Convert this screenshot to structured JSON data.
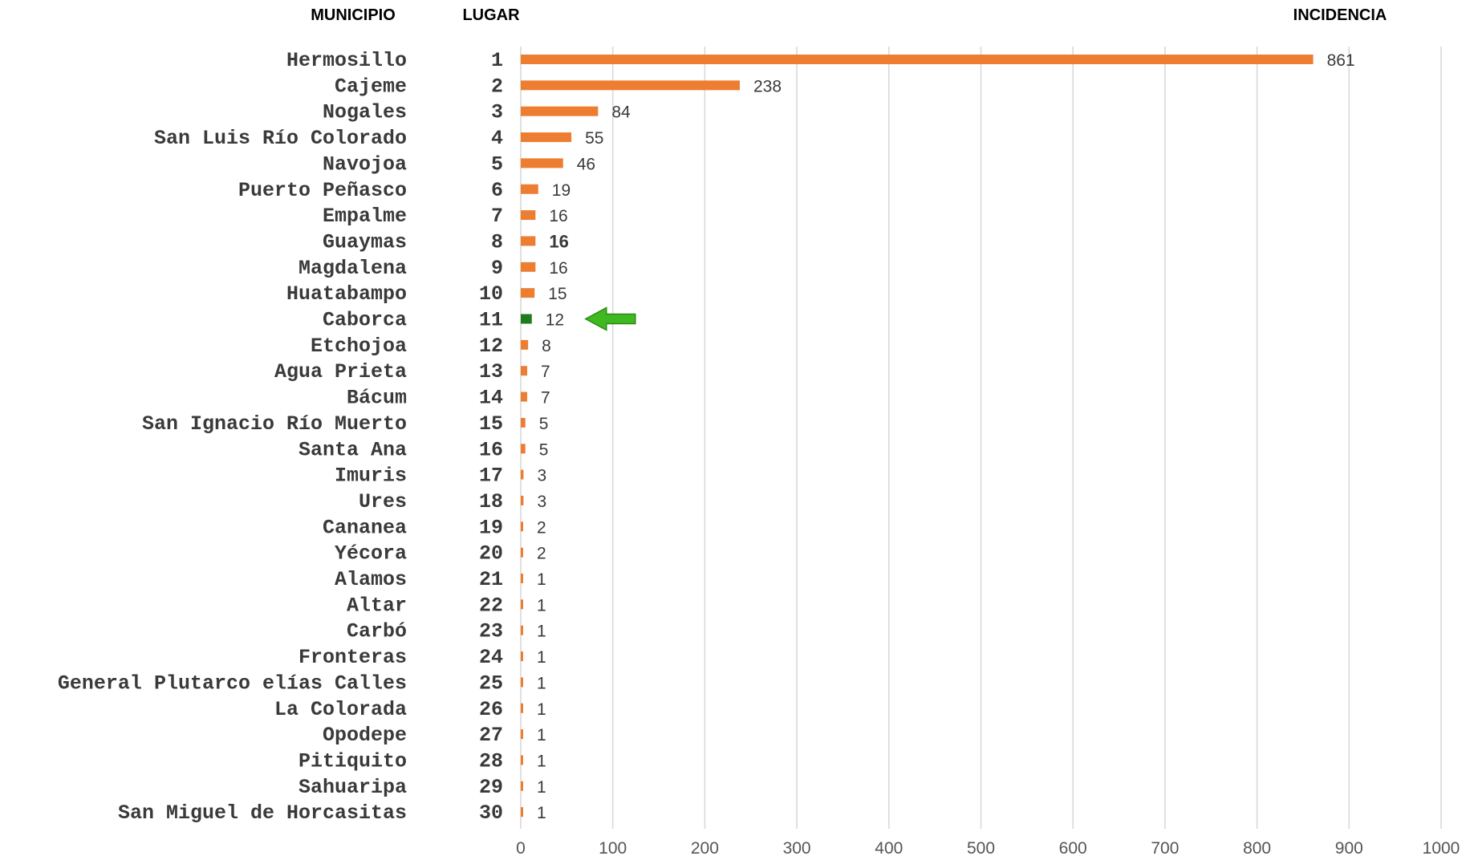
{
  "headers": {
    "municipio": "MUNICIPIO",
    "lugar": "LUGAR",
    "incidencia": "INCIDENCIA"
  },
  "colors": {
    "bar": "#ed7d31",
    "highlight": "#1e7b1e",
    "arrow": "#3fb91f",
    "grid": "#d9d9d9"
  },
  "chart_data": {
    "type": "bar",
    "orientation": "horizontal",
    "xlim": [
      0,
      1000
    ],
    "xticks": [
      0,
      100,
      200,
      300,
      400,
      500,
      600,
      700,
      800,
      900,
      1000
    ],
    "grid": true,
    "highlight_marker": "arrow-left-icon",
    "rows": [
      {
        "municipio": "Hermosillo",
        "lugar": "1",
        "value": 861,
        "label": "861"
      },
      {
        "municipio": "Cajeme",
        "lugar": "2",
        "value": 238,
        "label": "238"
      },
      {
        "municipio": "Nogales",
        "lugar": "3",
        "value": 84,
        "label": "84"
      },
      {
        "municipio": "San Luis Río Colorado",
        "lugar": "4",
        "value": 55,
        "label": "55"
      },
      {
        "municipio": "Navojoa",
        "lugar": "5",
        "value": 46,
        "label": "46"
      },
      {
        "municipio": "Puerto Peñasco",
        "lugar": "6",
        "value": 19,
        "label": "19"
      },
      {
        "municipio": "Empalme",
        "lugar": "7",
        "value": 16,
        "label": "16"
      },
      {
        "municipio": "Guaymas",
        "lugar": "8",
        "value": 16,
        "label": "16",
        "bold": true
      },
      {
        "municipio": "Magdalena",
        "lugar": "9",
        "value": 16,
        "label": "16"
      },
      {
        "municipio": "Huatabampo",
        "lugar": "10",
        "value": 15,
        "label": "15"
      },
      {
        "municipio": "Caborca",
        "lugar": "11",
        "value": 12,
        "label": "12",
        "highlight": true
      },
      {
        "municipio": "Etchojoa",
        "lugar": "12",
        "value": 8,
        "label": "8"
      },
      {
        "municipio": "Agua Prieta",
        "lugar": "13",
        "value": 7,
        "label": "7"
      },
      {
        "municipio": "Bácum",
        "lugar": "14",
        "value": 7,
        "label": "7"
      },
      {
        "municipio": "San Ignacio Río Muerto",
        "lugar": "15",
        "value": 5,
        "label": "5"
      },
      {
        "municipio": "Santa Ana",
        "lugar": "16",
        "value": 5,
        "label": "5"
      },
      {
        "municipio": "Imuris",
        "lugar": "17",
        "value": 3,
        "label": "3"
      },
      {
        "municipio": "Ures",
        "lugar": "18",
        "value": 3,
        "label": "3"
      },
      {
        "municipio": "Cananea",
        "lugar": "19",
        "value": 2,
        "label": "2"
      },
      {
        "municipio": "Yécora",
        "lugar": "20",
        "value": 2,
        "label": "2"
      },
      {
        "municipio": "Alamos",
        "lugar": "21",
        "value": 1,
        "label": "1"
      },
      {
        "municipio": "Altar",
        "lugar": "22",
        "value": 1,
        "label": "1"
      },
      {
        "municipio": "Carbó",
        "lugar": "23",
        "value": 1,
        "label": "1"
      },
      {
        "municipio": "Fronteras",
        "lugar": "24",
        "value": 1,
        "label": "1"
      },
      {
        "municipio": "General Plutarco elías Calles",
        "lugar": "25",
        "value": 1,
        "label": "1"
      },
      {
        "municipio": "La Colorada",
        "lugar": "26",
        "value": 1,
        "label": "1"
      },
      {
        "municipio": "Opodepe",
        "lugar": "27",
        "value": 1,
        "label": "1"
      },
      {
        "municipio": "Pitiquito",
        "lugar": "28",
        "value": 1,
        "label": "1"
      },
      {
        "municipio": "Sahuaripa",
        "lugar": "29",
        "value": 1,
        "label": "1"
      },
      {
        "municipio": "San Miguel de Horcasitas",
        "lugar": "30",
        "value": 1,
        "label": "1"
      }
    ]
  }
}
